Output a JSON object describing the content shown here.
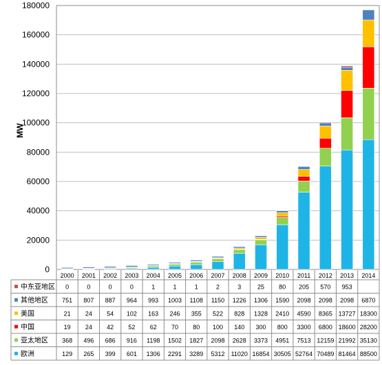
{
  "chart_data": {
    "type": "bar",
    "stacked": true,
    "ylabel": "MW",
    "ylim": [
      0,
      180000
    ],
    "yticks": [
      0,
      20000,
      40000,
      60000,
      80000,
      100000,
      120000,
      140000,
      160000,
      180000
    ],
    "grid": true,
    "categories": [
      "2000",
      "2001",
      "2002",
      "2003",
      "2004",
      "2005",
      "2006",
      "2007",
      "2008",
      "2009",
      "2010",
      "2011",
      "2012",
      "2013",
      "2014"
    ],
    "series": [
      {
        "name": "欧洲",
        "color": "#1fb4e6",
        "values": [
          129,
          265,
          399,
          601,
          1306,
          2291,
          3289,
          5312,
          11020,
          16854,
          30505,
          52764,
          70489,
          81464,
          88500
        ],
        "labels": [
          "129",
          "265",
          "399",
          "601",
          "1306",
          "2291",
          "3289",
          "5312",
          "11020",
          "16854",
          "30505",
          "52764",
          "70489",
          "81464",
          "88500"
        ]
      },
      {
        "name": "亚太地区",
        "color": "#92d050",
        "values": [
          368,
          496,
          686,
          916,
          1198,
          1502,
          1827,
          2098,
          2628,
          3373,
          4951,
          7513,
          12159,
          21992,
          35130
        ],
        "labels": [
          "368",
          "496",
          "686",
          "916",
          "1198",
          "1502",
          "1827",
          "2098",
          "2628",
          "3373",
          "4951",
          "7513",
          "12159",
          "21992",
          "35130"
        ]
      },
      {
        "name": "中国",
        "color": "#ff0000",
        "values": [
          19,
          24,
          42,
          52,
          62,
          70,
          80,
          100,
          140,
          300,
          800,
          3300,
          6800,
          18600,
          28200
        ],
        "labels": [
          "19",
          "24",
          "42",
          "52",
          "62",
          "70",
          "80",
          "100",
          "140",
          "300",
          "800",
          "3300",
          "6800",
          "18600",
          "28200"
        ]
      },
      {
        "name": "美国",
        "color": "#ffc000",
        "values": [
          21,
          24,
          54,
          102,
          163,
          246,
          355,
          522,
          828,
          1328,
          2410,
          4590,
          8365,
          13727,
          18300
        ],
        "labels": [
          "21",
          "24",
          "54",
          "102",
          "163",
          "246",
          "355",
          "522",
          "828",
          "1328",
          "2410",
          "4590",
          "8365",
          "13727",
          "18300"
        ]
      },
      {
        "name": "其他地区",
        "color": "#4f81bd",
        "values": [
          751,
          807,
          887,
          964,
          993,
          1003,
          1108,
          1150,
          1226,
          1306,
          1590,
          2098,
          2098,
          2098,
          6870
        ],
        "labels": [
          "751",
          "807",
          "887",
          "964",
          "993",
          "1003",
          "1108",
          "1150",
          "1226",
          "1306",
          "1590",
          "2098",
          "2098",
          "2098",
          "6870"
        ]
      },
      {
        "name": "中东亚地区",
        "color": "#c0504d",
        "values": [
          0,
          0,
          0,
          0,
          1,
          1,
          1,
          2,
          3,
          25,
          80,
          205,
          570,
          953,
          0
        ],
        "labels": [
          "0",
          "0",
          "0",
          "0",
          "1",
          "1",
          "1",
          "2",
          "3",
          "25",
          "80",
          "205",
          "570",
          "953",
          ""
        ]
      }
    ],
    "table_row_order": [
      "中东亚地区",
      "其他地区",
      "美国",
      "中国",
      "亚太地区",
      "欧洲"
    ]
  }
}
